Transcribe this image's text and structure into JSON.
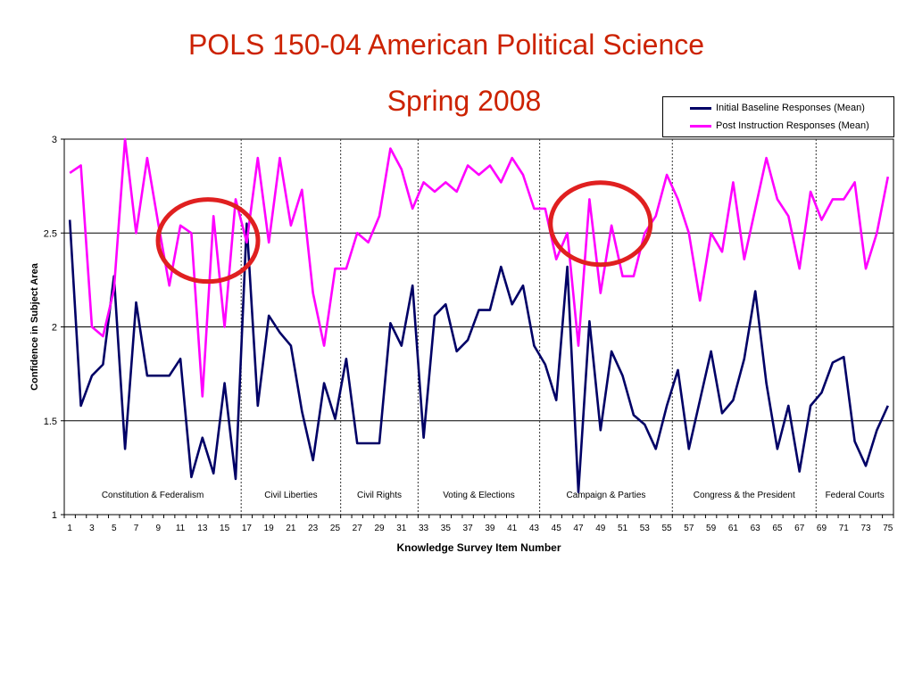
{
  "slide": {
    "title_line1": "POLS 150-04 American Political Science",
    "title_line2": "Spring 2008"
  },
  "colors": {
    "baseline": "#000066",
    "post": "#ff00ff",
    "highlight_circle": "#e02020",
    "title": "#cc2200"
  },
  "chart_data": {
    "type": "line",
    "title": "",
    "xlabel": "Knowledge Survey Item Number",
    "ylabel": "Confidence in Subject Area",
    "ylim": [
      1,
      3
    ],
    "yticks": [
      1,
      1.5,
      2,
      2.5,
      3
    ],
    "xlim": [
      1,
      75
    ],
    "xtick_labels": [
      "1",
      "3",
      "5",
      "7",
      "9",
      "11",
      "13",
      "15",
      "17",
      "19",
      "21",
      "23",
      "25",
      "27",
      "29",
      "31",
      "33",
      "35",
      "37",
      "39",
      "41",
      "43",
      "45",
      "47",
      "49",
      "51",
      "53",
      "55",
      "57",
      "59",
      "61",
      "63",
      "65",
      "67",
      "69",
      "71",
      "73",
      "75"
    ],
    "grid": "horizontal",
    "legend_position": "top-right",
    "series": [
      {
        "name": "Initial Baseline Responses (Mean)",
        "values": [
          2.57,
          1.58,
          1.74,
          1.8,
          2.27,
          1.35,
          2.13,
          1.74,
          1.74,
          1.74,
          1.83,
          1.2,
          1.41,
          1.22,
          1.7,
          1.19,
          2.55,
          1.58,
          2.06,
          1.97,
          1.9,
          1.55,
          1.29,
          1.7,
          1.51,
          1.83,
          1.38,
          1.38,
          1.38,
          2.02,
          1.9,
          2.22,
          1.41,
          2.06,
          2.12,
          1.87,
          1.93,
          2.09,
          2.09,
          2.32,
          2.12,
          2.22,
          1.9,
          1.8,
          1.61,
          2.32,
          1.12,
          2.03,
          1.45,
          1.87,
          1.74,
          1.53,
          1.48,
          1.35,
          1.58,
          1.77,
          1.35,
          1.61,
          1.87,
          1.54,
          1.61,
          1.83,
          2.19,
          1.7,
          1.35,
          1.58,
          1.23,
          1.58,
          1.65,
          1.81,
          1.84,
          1.39,
          1.26,
          1.45,
          1.58
        ]
      },
      {
        "name": "Post Instruction Responses (Mean)",
        "values": [
          2.82,
          2.86,
          2.0,
          1.95,
          2.2,
          3.0,
          2.5,
          2.9,
          2.55,
          2.22,
          2.54,
          2.5,
          1.63,
          2.59,
          2.0,
          2.68,
          2.45,
          2.9,
          2.45,
          2.9,
          2.54,
          2.73,
          2.18,
          1.9,
          2.31,
          2.31,
          2.5,
          2.45,
          2.59,
          2.95,
          2.84,
          2.63,
          2.77,
          2.72,
          2.77,
          2.72,
          2.86,
          2.81,
          2.86,
          2.77,
          2.9,
          2.81,
          2.63,
          2.63,
          2.36,
          2.5,
          1.9,
          2.68,
          2.18,
          2.54,
          2.27,
          2.27,
          2.5,
          2.59,
          2.81,
          2.68,
          2.5,
          2.14,
          2.5,
          2.4,
          2.77,
          2.36,
          2.63,
          2.9,
          2.68,
          2.59,
          2.31,
          2.72,
          2.57,
          2.68,
          2.68,
          2.77,
          2.31,
          2.5,
          2.8
        ]
      }
    ],
    "sections": [
      {
        "label": "Constitution & Federalism",
        "from": 1,
        "to": 16
      },
      {
        "label": "Civil Liberties",
        "from": 17,
        "to": 25
      },
      {
        "label": "Civil Rights",
        "from": 26,
        "to": 32
      },
      {
        "label": "Voting & Elections",
        "from": 33,
        "to": 43
      },
      {
        "label": "Campaign & Parties",
        "from": 44,
        "to": 55
      },
      {
        "label": "Congress & the President",
        "from": 56,
        "to": 68
      },
      {
        "label": "Federal Courts",
        "from": 69,
        "to": 75
      }
    ],
    "section_dividers_after": [
      16,
      25,
      32,
      43,
      55,
      68
    ],
    "highlights": [
      {
        "center_item": 13.5,
        "center_value": 2.46
      },
      {
        "center_item": 49,
        "center_value": 2.55
      }
    ]
  }
}
